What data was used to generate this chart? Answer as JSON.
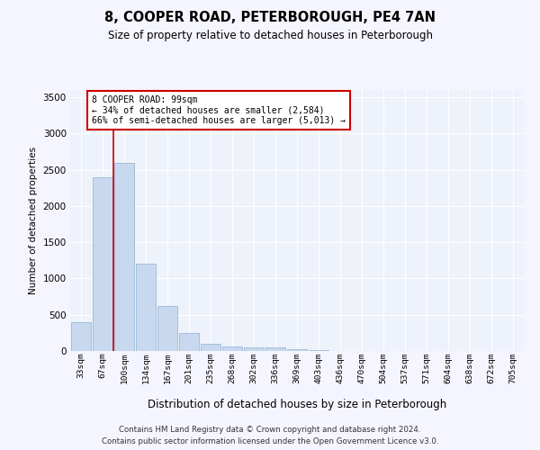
{
  "title": "8, COOPER ROAD, PETERBOROUGH, PE4 7AN",
  "subtitle": "Size of property relative to detached houses in Peterborough",
  "xlabel": "Distribution of detached houses by size in Peterborough",
  "ylabel": "Number of detached properties",
  "categories": [
    "33sqm",
    "67sqm",
    "100sqm",
    "134sqm",
    "167sqm",
    "201sqm",
    "235sqm",
    "268sqm",
    "302sqm",
    "336sqm",
    "369sqm",
    "403sqm",
    "436sqm",
    "470sqm",
    "504sqm",
    "537sqm",
    "571sqm",
    "604sqm",
    "638sqm",
    "672sqm",
    "705sqm"
  ],
  "values": [
    400,
    2400,
    2600,
    1200,
    620,
    250,
    100,
    65,
    55,
    50,
    20,
    10,
    5,
    3,
    2,
    1,
    1,
    0,
    0,
    0,
    0
  ],
  "bar_color": "#c8d8ee",
  "bar_edge_color": "#9ab8d8",
  "red_line_index": 2,
  "annotation_title": "8 COOPER ROAD: 99sqm",
  "annotation_line1": "← 34% of detached houses are smaller (2,584)",
  "annotation_line2": "66% of semi-detached houses are larger (5,013) →",
  "annotation_box_color": "#ffffff",
  "annotation_box_edge": "#cc0000",
  "red_line_color": "#cc0000",
  "ylim": [
    0,
    3600
  ],
  "yticks": [
    0,
    500,
    1000,
    1500,
    2000,
    2500,
    3000,
    3500
  ],
  "bg_color": "#eef2fb",
  "grid_color": "#ffffff",
  "fig_bg_color": "#f5f5ff",
  "footer_line1": "Contains HM Land Registry data © Crown copyright and database right 2024.",
  "footer_line2": "Contains public sector information licensed under the Open Government Licence v3.0."
}
